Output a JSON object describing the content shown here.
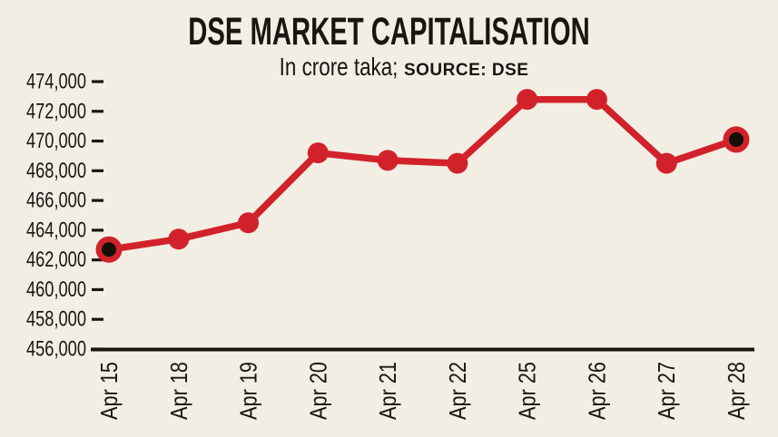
{
  "header": {
    "title": "DSE MARKET CAPITALISATION",
    "unit_label": "In crore taka;",
    "source_label": "SOURCE: DSE"
  },
  "chart_data": {
    "type": "line",
    "title": "DSE MARKET CAPITALISATION",
    "subtitle": "In crore taka; SOURCE: DSE",
    "unit": "crore taka",
    "source": "DSE",
    "categories": [
      "Apr 15",
      "Apr 18",
      "Apr 19",
      "Apr 20",
      "Apr 21",
      "Apr 22",
      "Apr 25",
      "Apr 26",
      "Apr 27",
      "Apr 28"
    ],
    "values": [
      462700,
      463400,
      464500,
      469200,
      468700,
      468500,
      472800,
      472800,
      468500,
      470100
    ],
    "ylim": [
      456000,
      474000
    ],
    "ytick_step": 2000,
    "yticks": [
      {
        "label": "474,000",
        "value": 474000
      },
      {
        "label": "472,000",
        "value": 472000
      },
      {
        "label": "470,000",
        "value": 470000
      },
      {
        "label": "468,000",
        "value": 468000
      },
      {
        "label": "466,000",
        "value": 466000
      },
      {
        "label": "464,000",
        "value": 464000
      },
      {
        "label": "462,000",
        "value": 462000
      },
      {
        "label": "460,000",
        "value": 460000
      },
      {
        "label": "458,000",
        "value": 458000
      },
      {
        "label": "456,000",
        "value": 456000
      }
    ],
    "highlighted_points": [
      0,
      9
    ],
    "grid": false,
    "legend": "none",
    "colors": {
      "background": "#f2eee4",
      "line": "#d1222b",
      "marker": "#d1222b",
      "highlight_inner": "#141007",
      "ink": "#1b1511"
    }
  }
}
